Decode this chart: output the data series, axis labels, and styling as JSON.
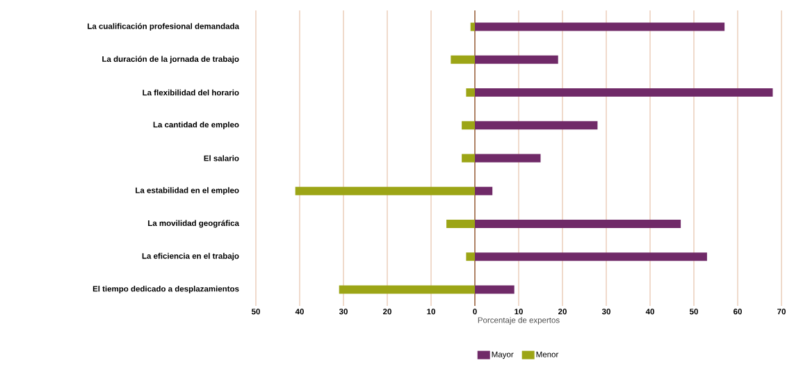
{
  "chart_data": {
    "type": "bar",
    "orientation": "horizontal",
    "xlabel": "Porcentaje de expertos",
    "categories": [
      "La cualificación profesional demandada",
      "La duración de la jornada de trabajo",
      "La flexibilidad del horario",
      "La cantidad de empleo",
      "El salario",
      "La estabilidad en el empleo",
      "La movilidad geográfica",
      "La eficiencia en el trabajo",
      "El tiempo dedicado a desplazamientos"
    ],
    "series": [
      {
        "name": "Mayor",
        "color": "#702a68",
        "values": [
          57,
          19,
          68,
          28,
          15,
          4,
          47,
          53,
          9
        ]
      },
      {
        "name": "Menor",
        "color": "#9ca516",
        "values": [
          -1,
          -5.5,
          -2,
          -3,
          -3,
          -41,
          -6.5,
          -2,
          -31
        ]
      }
    ],
    "xlim": [
      -50,
      70
    ],
    "xticks": [
      {
        "value": -50,
        "label": "50"
      },
      {
        "value": -40,
        "label": "40"
      },
      {
        "value": -30,
        "label": "30"
      },
      {
        "value": -20,
        "label": "20"
      },
      {
        "value": -10,
        "label": "10"
      },
      0,
      10,
      20,
      30,
      40,
      50,
      60,
      70
    ],
    "stacked": true,
    "ref_lines": [
      {
        "axis": "x",
        "value": 0,
        "color": "#ae8265"
      }
    ],
    "grid": "x",
    "legend": "bottom"
  }
}
